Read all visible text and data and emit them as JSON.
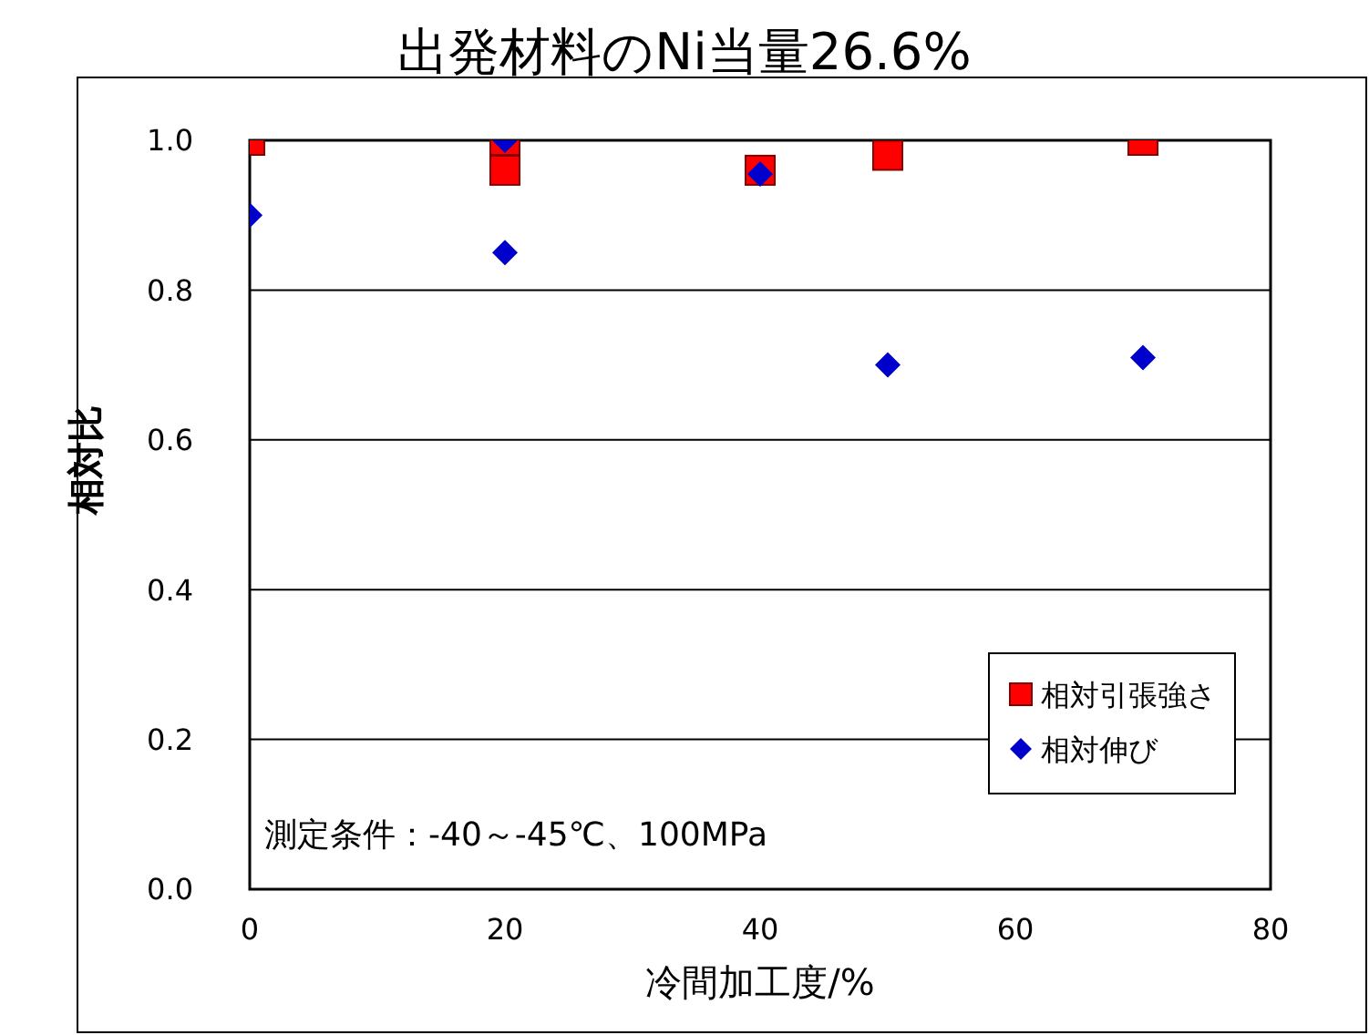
{
  "chart_data": {
    "type": "scatter",
    "title": "出発材料のNi当量26.6%",
    "xlabel": "冷間加工度/%",
    "ylabel": "相対比",
    "xlim": [
      0,
      80
    ],
    "xticks": [
      0,
      20,
      40,
      60,
      80
    ],
    "ylim": [
      0,
      1
    ],
    "yticks": [
      {
        "value": 0,
        "label": "0.0"
      },
      0.2,
      0.4,
      0.6,
      0.8,
      {
        "value": 1,
        "label": "1.0"
      }
    ],
    "grid": "y",
    "legend": "bottom right",
    "annotations": [
      "測定条件：-40～-45℃、100MPa"
    ],
    "series": [
      {
        "name": "相対引張強さ",
        "color": "#ff0000",
        "marker": "square",
        "x": [
          0,
          20,
          20,
          40,
          50,
          70
        ],
        "values": [
          1.0,
          1.0,
          0.96,
          0.96,
          0.98,
          1.0
        ]
      },
      {
        "name": "相対伸び",
        "color": "#0000cc",
        "marker": "diamond",
        "x": [
          0,
          20,
          20,
          40,
          50,
          70
        ],
        "values": [
          0.9,
          0.85,
          1.0,
          0.955,
          0.7,
          0.71
        ]
      }
    ]
  }
}
